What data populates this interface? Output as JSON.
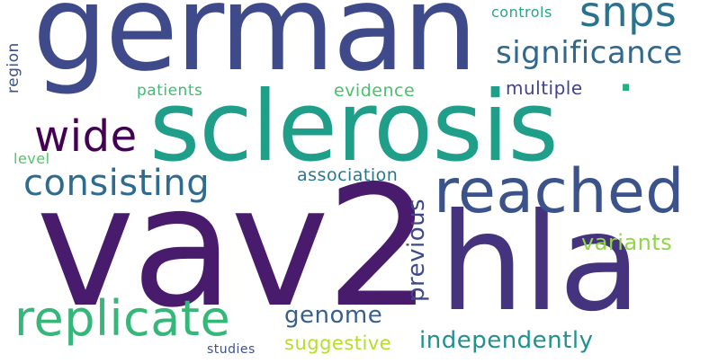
{
  "words": {
    "vav2": {
      "text": "vav2",
      "color": "#481b6d"
    },
    "hla": {
      "text": "hla",
      "color": "#46337e"
    },
    "german": {
      "text": "german",
      "color": "#3e4a89"
    },
    "sclerosis": {
      "text": "sclerosis",
      "color": "#1f9e89"
    },
    "reached": {
      "text": "reached",
      "color": "#3b528b"
    },
    "replicate": {
      "text": "replicate",
      "color": "#35b779"
    },
    "snps": {
      "text": "snps",
      "color": "#2c728e"
    },
    "significance": {
      "text": "significance",
      "color": "#31688e"
    },
    "consisting": {
      "text": "consisting",
      "color": "#2f6b8e"
    },
    "wide": {
      "text": "wide",
      "color": "#440154"
    },
    "independently": {
      "text": "independently",
      "color": "#21918c"
    },
    "previous": {
      "text": "previous",
      "color": "#3e4989"
    },
    "genome": {
      "text": "genome",
      "color": "#355f8d"
    },
    "variants": {
      "text": "variants",
      "color": "#8fd744"
    },
    "suggestive": {
      "text": "suggestive",
      "color": "#b5de2b"
    },
    "association": {
      "text": "association",
      "color": "#2a768e"
    },
    "multiple": {
      "text": "multiple",
      "color": "#414487"
    },
    "evidence": {
      "text": "evidence",
      "color": "#4ac16d"
    },
    "patients": {
      "text": "patients",
      "color": "#3fbc73"
    },
    "controls": {
      "text": "controls",
      "color": "#22a884"
    },
    "region": {
      "text": "region",
      "color": "#3b528b"
    },
    "level": {
      "text": "level",
      "color": "#52c569"
    },
    "studies": {
      "text": "studies",
      "color": "#3b528b"
    },
    "dot": {
      "text": ".",
      "color": "#29af7f"
    }
  }
}
